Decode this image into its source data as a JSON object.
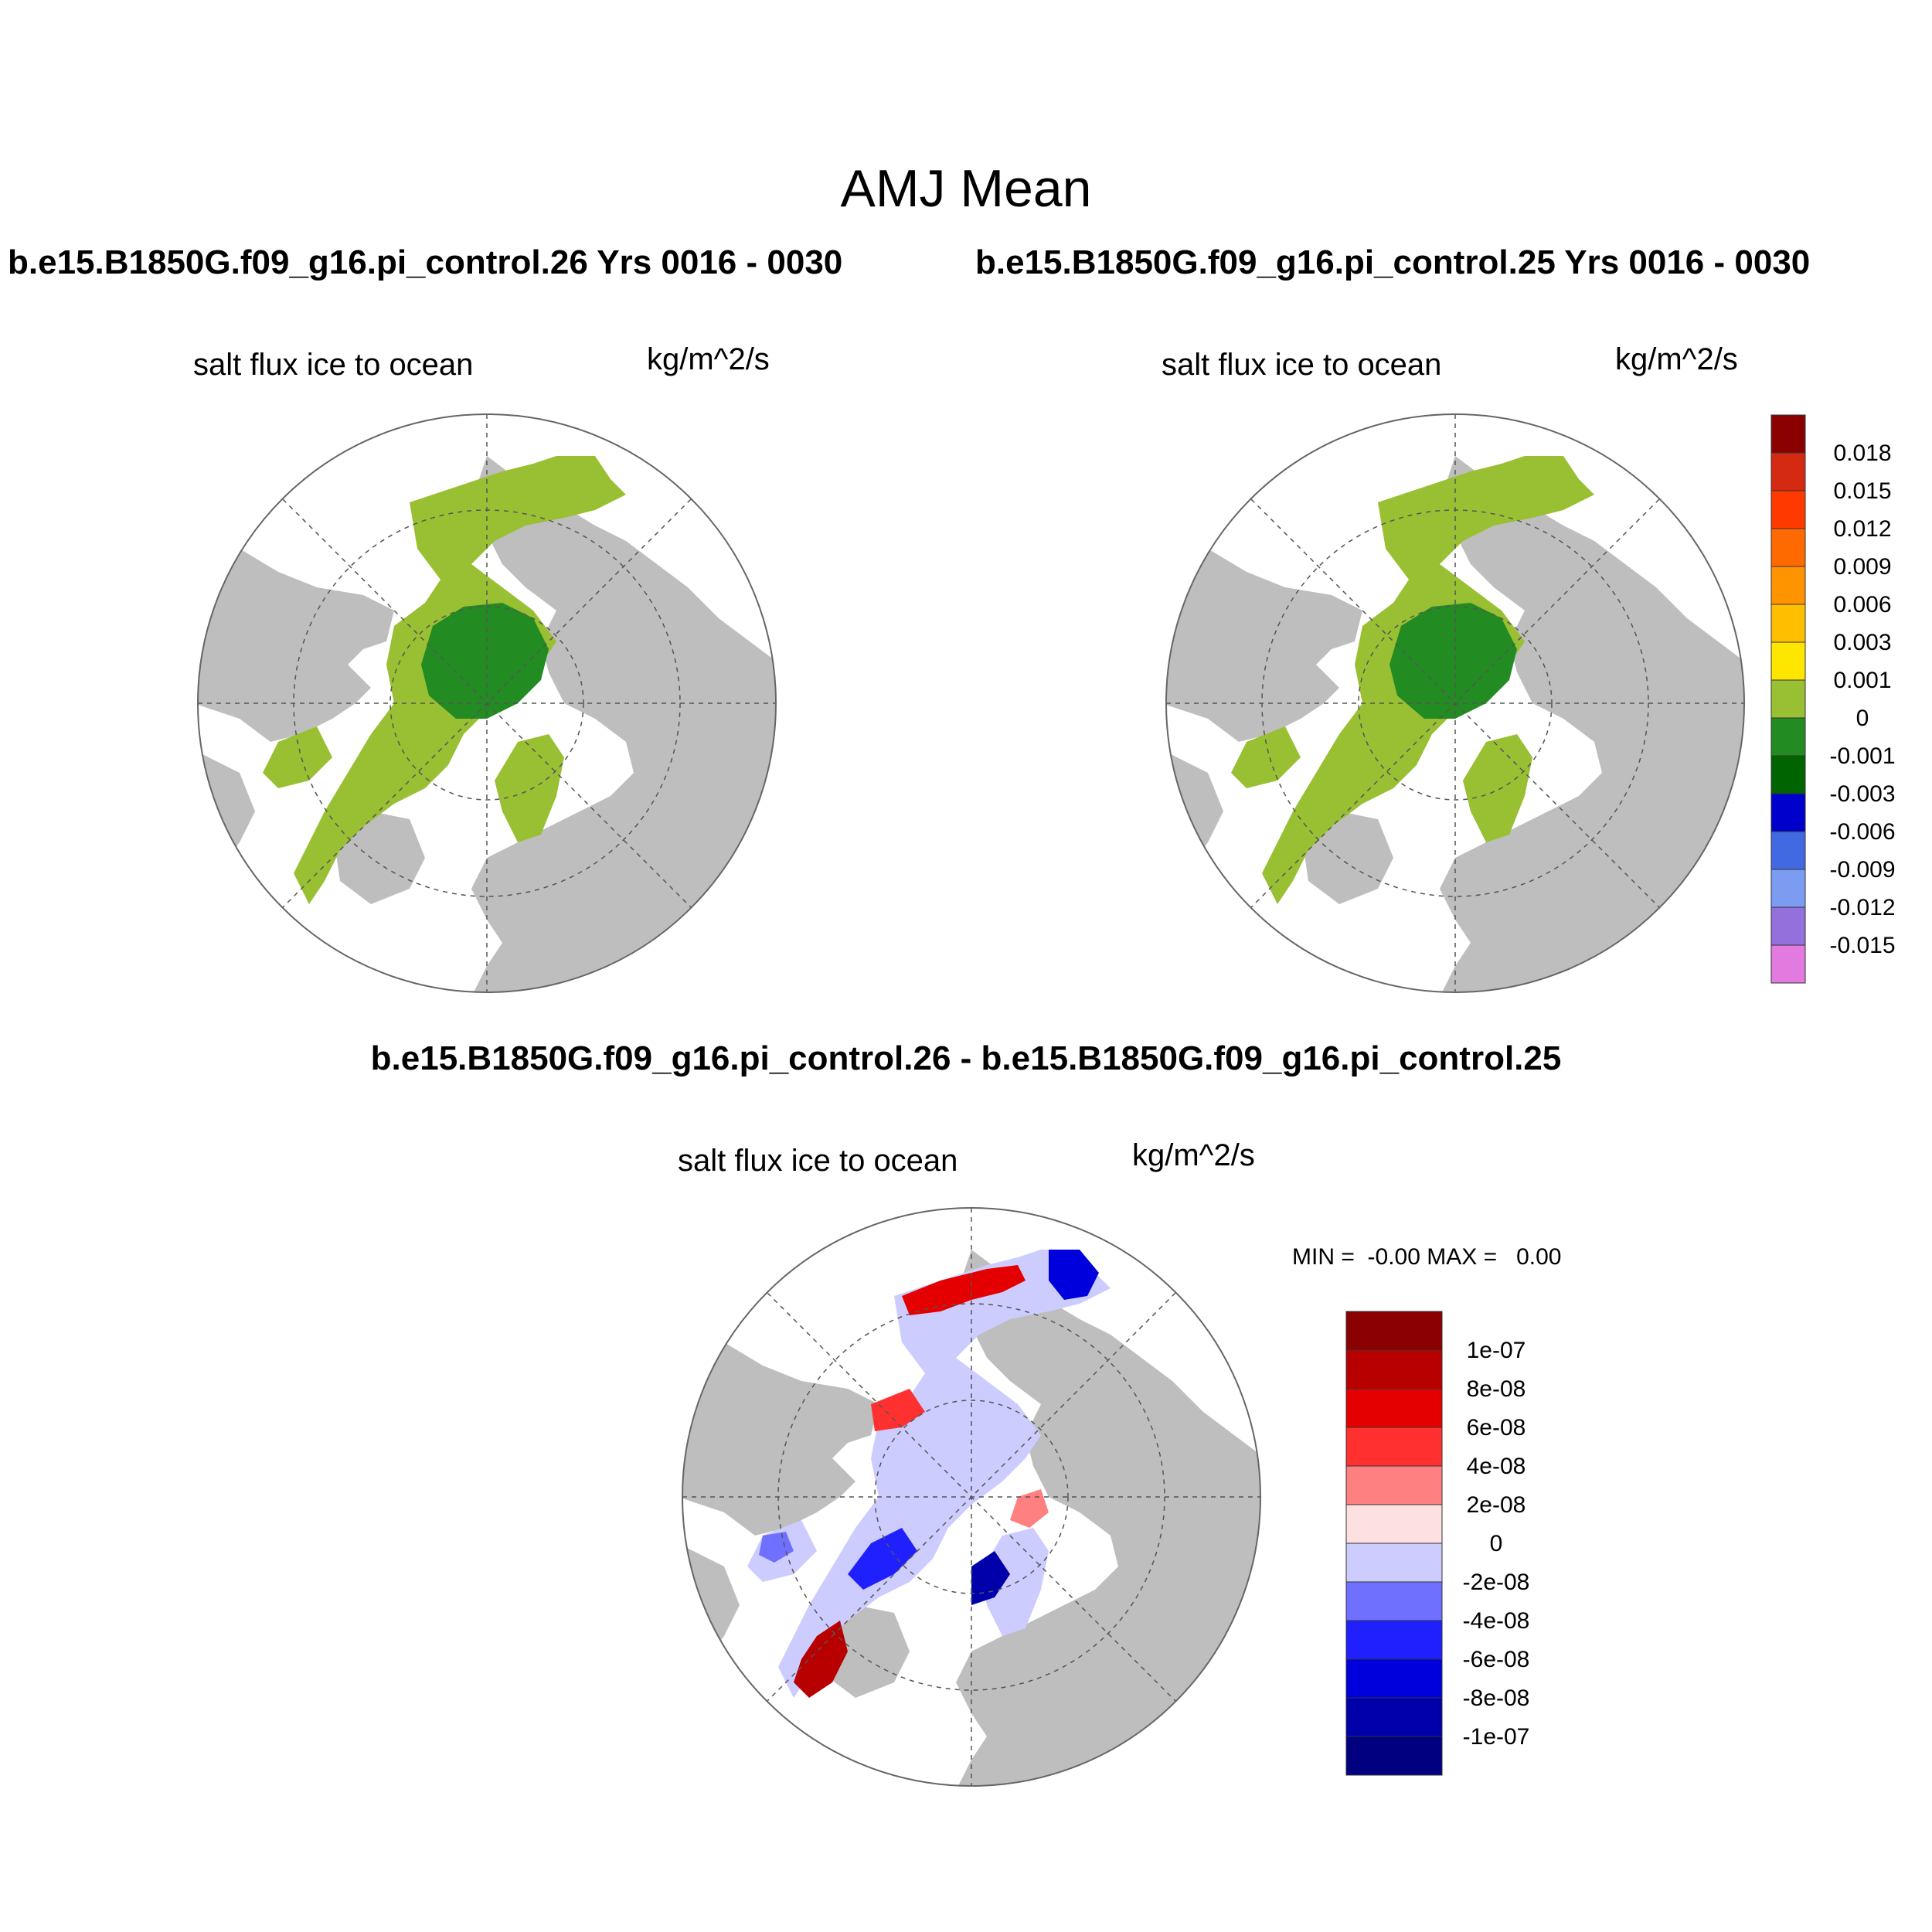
{
  "figure": {
    "title": "AMJ Mean",
    "case_left": "b.e15.B1850G.f09_g16.pi_control.26  Yrs 0016 - 0030",
    "case_right": "b.e15.B1850G.f09_g16.pi_control.25  Yrs 0016 - 0030",
    "diff_title": "b.e15.B1850G.f09_g16.pi_control.26 - b.e15.B1850G.f09_g16.pi_control.25"
  },
  "panels": [
    {
      "variable": "salt flux ice to ocean",
      "units": "kg/m^2/s"
    },
    {
      "variable": "salt flux ice to ocean",
      "units": "kg/m^2/s"
    },
    {
      "variable": "salt flux ice to ocean",
      "units": "kg/m^2/s",
      "min_label": "MIN =  -0.00 MAX =   0.00"
    }
  ],
  "colorbar_main": {
    "labels": [
      "0.018",
      "0.015",
      "0.012",
      "0.009",
      "0.006",
      "0.003",
      "0.001",
      "0",
      "-0.001",
      "-0.003",
      "-0.006",
      "-0.009",
      "-0.012",
      "-0.015"
    ],
    "colors": [
      "#8b0000",
      "#d42a12",
      "#ff3a00",
      "#ff6a00",
      "#ff9400",
      "#ffbf00",
      "#ffe600",
      "#99bf33",
      "#228b22",
      "#006400",
      "#0000cd",
      "#4169e1",
      "#7b9cf0",
      "#9370db",
      "#e37ae0"
    ]
  },
  "colorbar_diff": {
    "labels": [
      "1e-07",
      "8e-08",
      "6e-08",
      "4e-08",
      "2e-08",
      "0",
      "-2e-08",
      "-4e-08",
      "-6e-08",
      "-8e-08",
      "-1e-07"
    ],
    "colors": [
      "#8b0000",
      "#b80000",
      "#e40000",
      "#ff3030",
      "#ff8080",
      "#fde0e0",
      "#ccccff",
      "#7070ff",
      "#2020ff",
      "#0000dd",
      "#0000aa",
      "#000080"
    ]
  },
  "map_colors": {
    "land": "#bebebe",
    "ocean": "#ffffff",
    "ice_light": "#99bf33",
    "ice_dark": "#228b22",
    "ice_darkest": "#006400",
    "diff_neutral": "#ccccff"
  }
}
